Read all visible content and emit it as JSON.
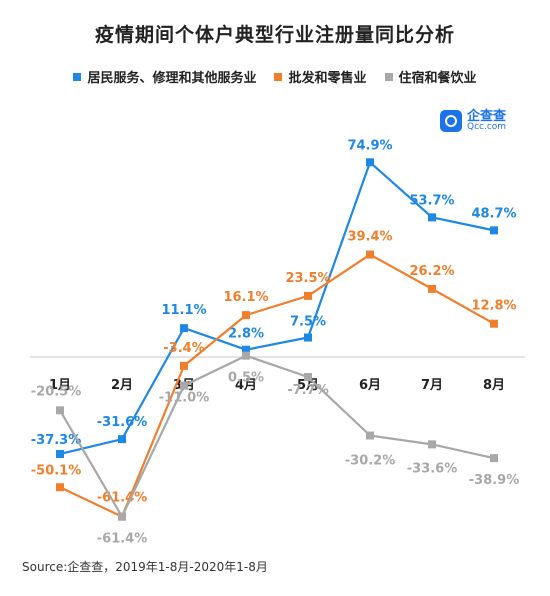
{
  "title": "疫情期间个体户典型行业注册量同比分析",
  "brand": {
    "name": "企查查",
    "url": "Qcc.com"
  },
  "source": "Source:企查查，2019年1-8月-2020年1-8月",
  "chart_data": {
    "type": "line",
    "title": "疫情期间个体户典型行业注册量同比分析",
    "categories": [
      "1月",
      "2月",
      "3月",
      "4月",
      "5月",
      "6月",
      "7月",
      "8月"
    ],
    "unit": "%",
    "legend_position": "top",
    "grid": false,
    "series": [
      {
        "name": "居民服务、修理和其他服务业",
        "color": "#1e88e5",
        "values": [
          -37.3,
          -31.6,
          11.1,
          2.8,
          7.5,
          74.9,
          53.7,
          48.7
        ]
      },
      {
        "name": "批发和零售业",
        "color": "#f07f2d",
        "values": [
          -50.1,
          -61.4,
          -3.4,
          16.1,
          23.5,
          39.4,
          26.2,
          12.8
        ]
      },
      {
        "name": "住宿和餐饮业",
        "color": "#a8a8a8",
        "values": [
          -20.5,
          -61.4,
          -11.0,
          0.5,
          -7.7,
          -30.2,
          -33.6,
          -38.9
        ]
      }
    ]
  }
}
